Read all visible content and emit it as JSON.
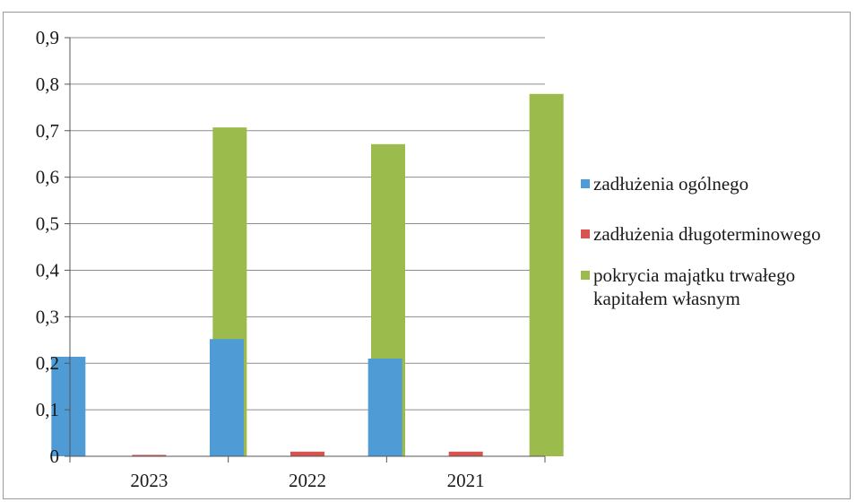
{
  "chart_data": {
    "type": "bar",
    "categories": [
      "2023",
      "2022",
      "2021"
    ],
    "series": [
      {
        "name": "zadłużenia ogólnego",
        "values": [
          0.214,
          0.252,
          0.21
        ],
        "color": "#4f9bd6"
      },
      {
        "name": "zadłużenia długoterminowego",
        "values": [
          0.003,
          0.01,
          0.01
        ],
        "color": "#d9534f"
      },
      {
        "name": "pokrycia majątku trwałego kapitałem własnym",
        "values": [
          0.707,
          0.671,
          0.779
        ],
        "color": "#9bbb4c"
      }
    ],
    "ylim": [
      0,
      0.9
    ],
    "yticks": [
      "0",
      "0,1",
      "0,2",
      "0,3",
      "0,4",
      "0,5",
      "0,6",
      "0,7",
      "0,8",
      "0,9"
    ],
    "grid": true,
    "legend_position": "right"
  }
}
